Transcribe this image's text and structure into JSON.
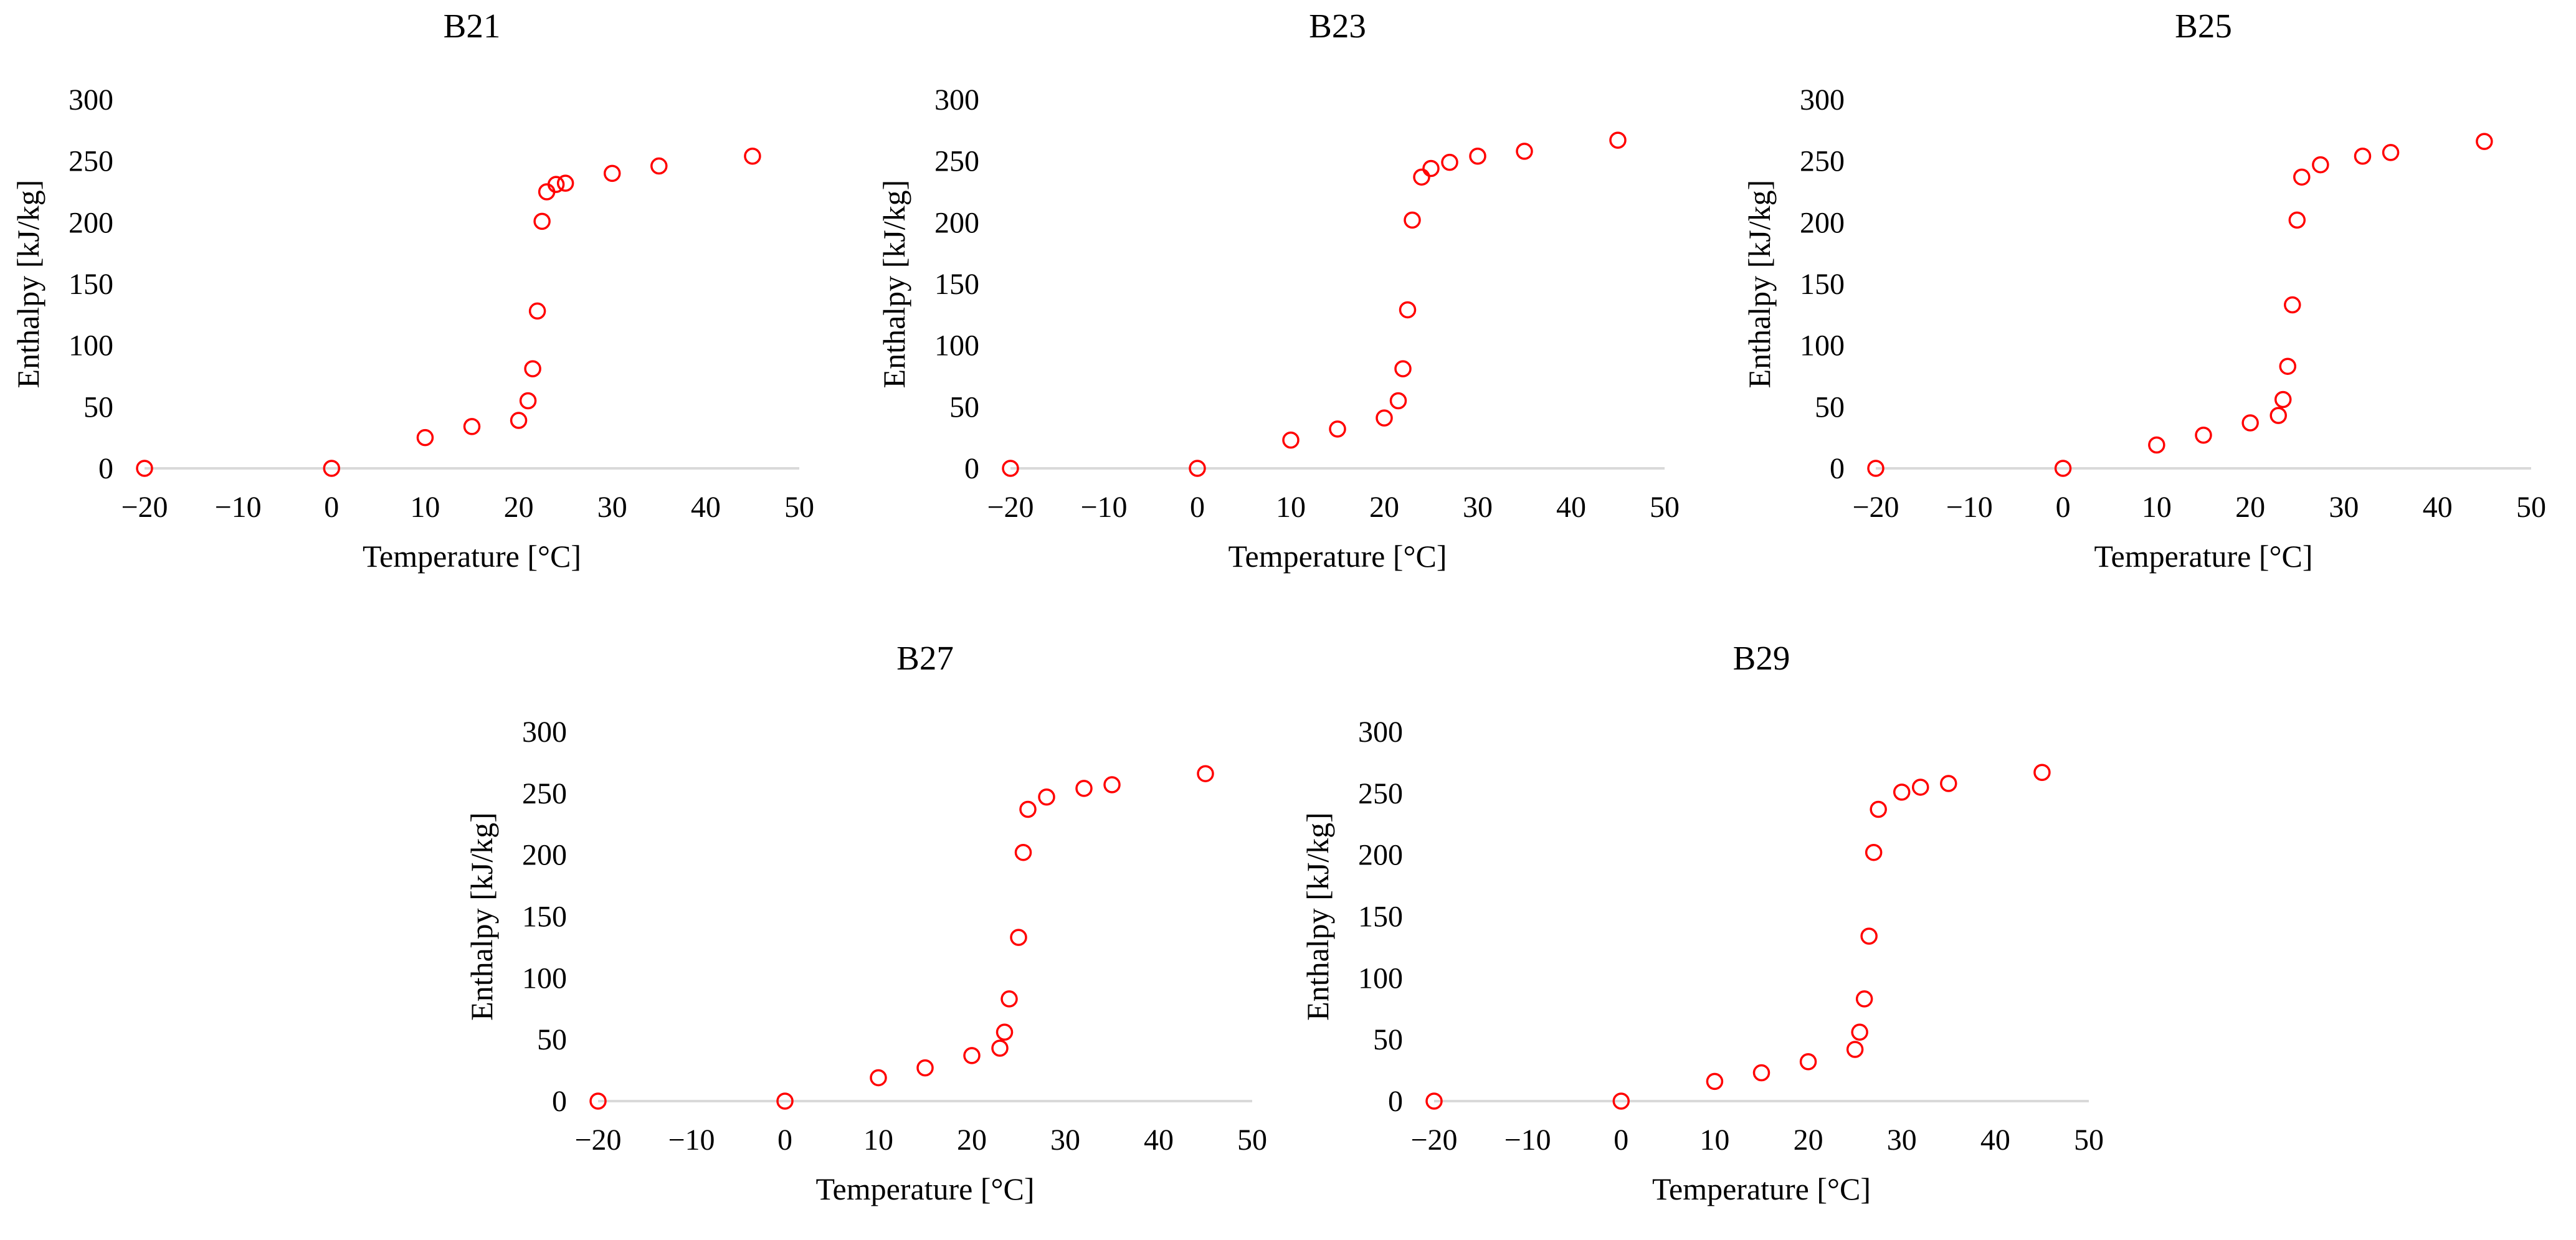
{
  "colors": {
    "marker": "#ff0000",
    "axis": "#d9d9d9",
    "text": "#000000"
  },
  "chart_data": [
    {
      "type": "scatter",
      "title": "B21",
      "xlabel": "Temperature [°C]",
      "ylabel": "Enthalpy  [kJ/kg]",
      "xlim": [
        -20,
        50
      ],
      "ylim": [
        0,
        300
      ],
      "xticks": [
        "−20",
        "−10",
        "0",
        "10",
        "20",
        "30",
        "40",
        "50"
      ],
      "yticks": [
        "0",
        "50",
        "100",
        "150",
        "200",
        "250",
        "300"
      ],
      "x": [
        -20,
        0,
        10,
        15,
        20,
        21,
        21.5,
        22,
        22.5,
        23,
        24,
        25,
        30,
        35,
        45
      ],
      "y": [
        0,
        0,
        25,
        34,
        39,
        55,
        81,
        128,
        201,
        225,
        231,
        232,
        240,
        246,
        254
      ]
    },
    {
      "type": "scatter",
      "title": "B23",
      "xlabel": "Temperature [°C]",
      "ylabel": "Enthalpy  [kJ/kg]",
      "xlim": [
        -20,
        50
      ],
      "ylim": [
        0,
        300
      ],
      "xticks": [
        "−20",
        "−10",
        "0",
        "10",
        "20",
        "30",
        "40",
        "50"
      ],
      "yticks": [
        "0",
        "50",
        "100",
        "150",
        "200",
        "250",
        "300"
      ],
      "x": [
        -20,
        0,
        10,
        15,
        20,
        21.5,
        22,
        22.5,
        23,
        24,
        25,
        27,
        30,
        35,
        45
      ],
      "y": [
        0,
        0,
        23,
        32,
        41,
        55,
        81,
        129,
        202,
        237,
        244,
        249,
        254,
        258,
        267
      ]
    },
    {
      "type": "scatter",
      "title": "B25",
      "xlabel": "Temperature [°C]",
      "ylabel": "Enthalpy  [kJ/kg]",
      "xlim": [
        -20,
        50
      ],
      "ylim": [
        0,
        300
      ],
      "xticks": [
        "−20",
        "−10",
        "0",
        "10",
        "20",
        "30",
        "40",
        "50"
      ],
      "yticks": [
        "0",
        "50",
        "100",
        "150",
        "200",
        "250",
        "300"
      ],
      "x": [
        -20,
        0,
        10,
        15,
        20,
        23,
        23.5,
        24,
        24.5,
        25,
        25.5,
        27.5,
        32,
        35,
        45
      ],
      "y": [
        0,
        0,
        19,
        27,
        37,
        43,
        56,
        83,
        133,
        202,
        237,
        247,
        254,
        257,
        266
      ]
    },
    {
      "type": "scatter",
      "title": "B27",
      "xlabel": "Temperature [°C]",
      "ylabel": "Enthalpy  [kJ/kg]",
      "xlim": [
        -20,
        50
      ],
      "ylim": [
        0,
        300
      ],
      "xticks": [
        "−20",
        "−10",
        "0",
        "10",
        "20",
        "30",
        "40",
        "50"
      ],
      "yticks": [
        "0",
        "50",
        "100",
        "150",
        "200",
        "250",
        "300"
      ],
      "x": [
        -20,
        0,
        10,
        15,
        20,
        23,
        23.5,
        24,
        25,
        25.5,
        26,
        28,
        32,
        35,
        45
      ],
      "y": [
        0,
        0,
        19,
        27,
        37,
        43,
        56,
        83,
        133,
        202,
        237,
        247,
        254,
        257,
        266
      ]
    },
    {
      "type": "scatter",
      "title": "B29",
      "xlabel": "Temperature [°C]",
      "ylabel": "Enthalpy  [kJ/kg]",
      "xlim": [
        -20,
        50
      ],
      "ylim": [
        0,
        300
      ],
      "xticks": [
        "−20",
        "−10",
        "0",
        "10",
        "20",
        "30",
        "40",
        "50"
      ],
      "yticks": [
        "0",
        "50",
        "100",
        "150",
        "200",
        "250",
        "300"
      ],
      "x": [
        -20,
        0,
        10,
        15,
        20,
        25,
        25.5,
        26,
        26.5,
        27,
        27.5,
        30,
        32,
        35,
        45
      ],
      "y": [
        0,
        0,
        16,
        23,
        32,
        42,
        56,
        83,
        134,
        202,
        237,
        251,
        255,
        258,
        267
      ]
    }
  ]
}
